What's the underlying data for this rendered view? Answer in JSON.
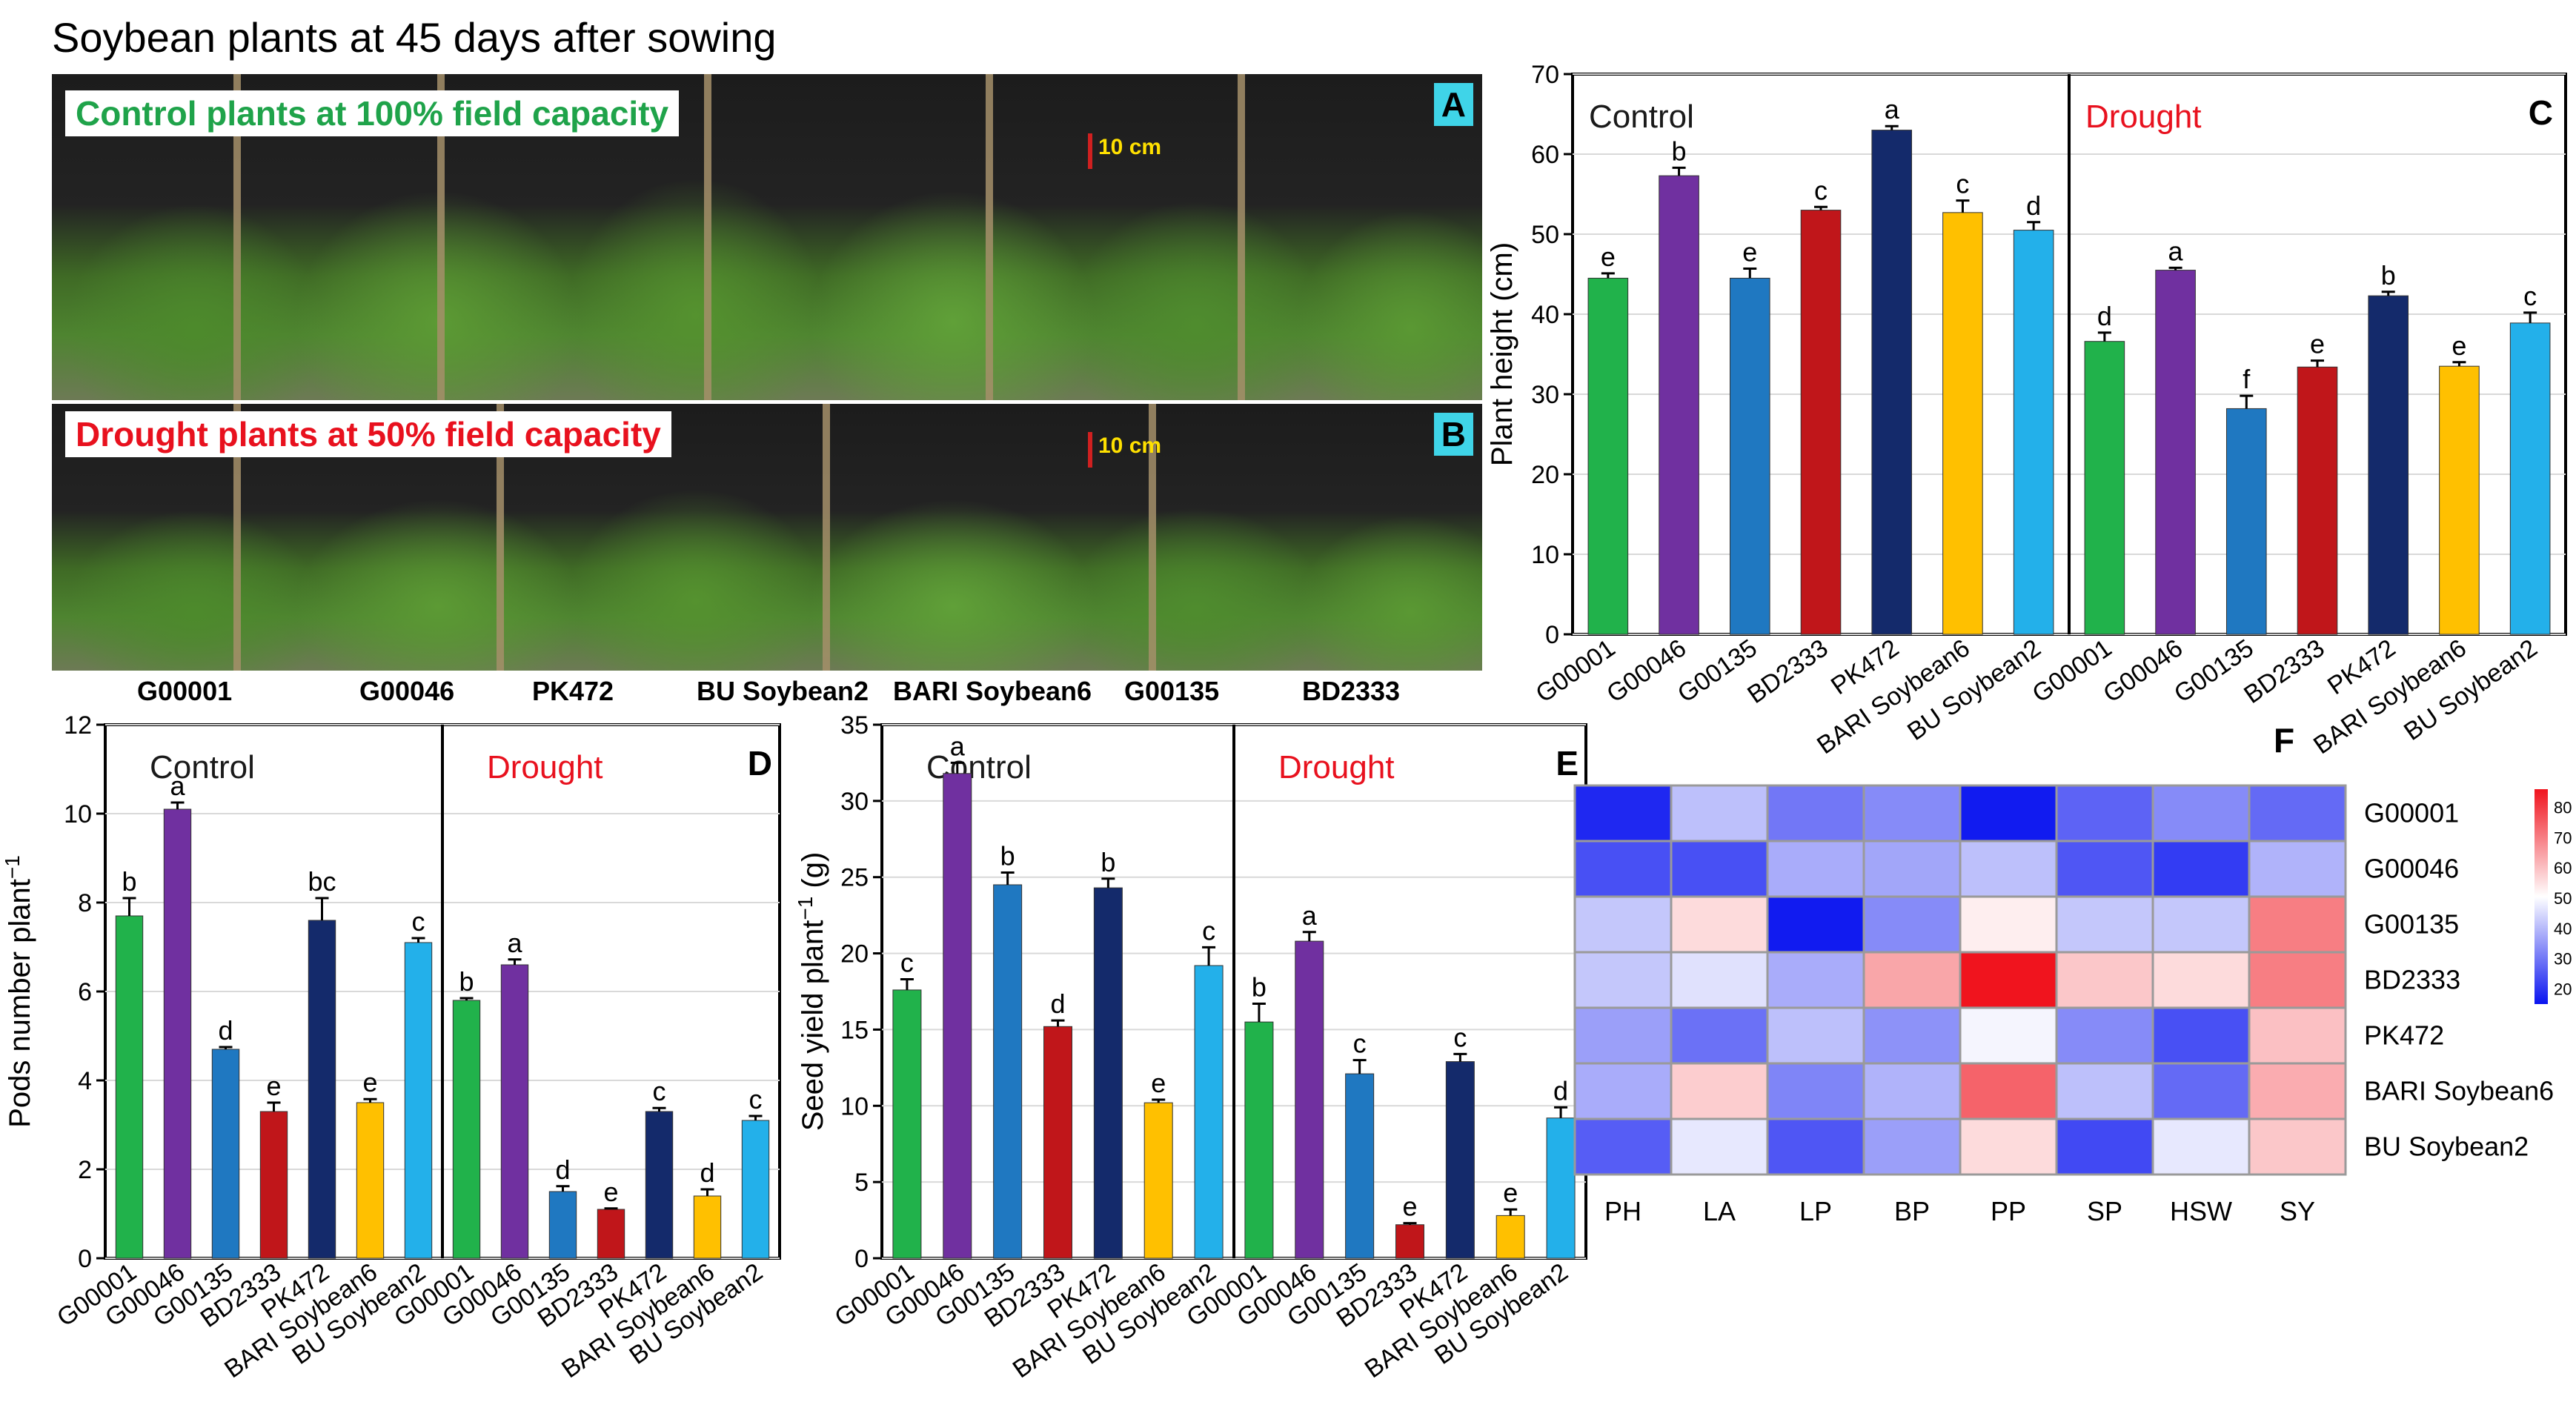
{
  "title": "Soybean plants at 45 days after sowing",
  "photo_a": {
    "label": "Control plants at 100% field capacity",
    "tag": "A",
    "scale": "10 cm"
  },
  "photo_b": {
    "label": "Drought plants at 50% field capacity",
    "tag": "B",
    "scale": "10 cm"
  },
  "photo_cultivars": [
    "G00001",
    "G00046",
    "PK472",
    "BU Soybean2",
    "BARI Soybean6",
    "G00135",
    "BD2333"
  ],
  "colors": {
    "control_text": "#1a1a1a",
    "drought_text": "#e8111e",
    "label_green": "#1fa34a",
    "label_red": "#e8111e"
  },
  "chart_data": [
    {
      "type": "bar",
      "panel": "C",
      "ylabel": "Plant height (cm)",
      "ylim": [
        0,
        70
      ],
      "yticks": [
        0,
        10,
        20,
        30,
        40,
        50,
        60,
        70
      ],
      "groups": [
        "Control",
        "Drought"
      ],
      "categories": [
        "G00001",
        "G00046",
        "G00135",
        "BD2333",
        "PK472",
        "BARI Soybean6",
        "BU Soybean2"
      ],
      "colors": [
        "#21b24b",
        "#7030a0",
        "#1f78c1",
        "#c0161a",
        "#142a6b",
        "#ffc000",
        "#23b0ea"
      ],
      "series": [
        {
          "name": "Control",
          "values": [
            44.5,
            57.3,
            44.5,
            53.0,
            63.0,
            52.7,
            50.5
          ],
          "errors": [
            0.6,
            1.0,
            1.2,
            0.4,
            0.5,
            1.5,
            1.0
          ],
          "letters": [
            "e",
            "b",
            "e",
            "c",
            "a",
            "c",
            "d"
          ]
        },
        {
          "name": "Drought",
          "values": [
            36.6,
            45.5,
            28.2,
            33.4,
            42.3,
            33.5,
            38.9
          ],
          "errors": [
            1.1,
            0.3,
            1.6,
            0.8,
            0.5,
            0.5,
            1.3
          ],
          "letters": [
            "d",
            "a",
            "f",
            "e",
            "b",
            "e",
            "c"
          ]
        }
      ]
    },
    {
      "type": "bar",
      "panel": "D",
      "ylabel": "Pods number plant",
      "ylabel_sup": "−1",
      "ylim": [
        0,
        12
      ],
      "yticks": [
        0,
        2,
        4,
        6,
        8,
        10,
        12
      ],
      "groups": [
        "Control",
        "Drought"
      ],
      "categories": [
        "G00001",
        "G00046",
        "G00135",
        "BD2333",
        "PK472",
        "BARI Soybean6",
        "BU Soybean2"
      ],
      "colors": [
        "#21b24b",
        "#7030a0",
        "#1f78c1",
        "#c0161a",
        "#142a6b",
        "#ffc000",
        "#23b0ea"
      ],
      "series": [
        {
          "name": "Control",
          "values": [
            7.7,
            10.1,
            4.7,
            3.3,
            7.6,
            3.5,
            7.1
          ],
          "errors": [
            0.4,
            0.15,
            0.05,
            0.2,
            0.5,
            0.08,
            0.1
          ],
          "letters": [
            "b",
            "a",
            "d",
            "e",
            "bc",
            "e",
            "c"
          ]
        },
        {
          "name": "Drought",
          "values": [
            5.8,
            6.6,
            1.5,
            1.1,
            3.3,
            1.4,
            3.1
          ],
          "errors": [
            0.05,
            0.12,
            0.12,
            0.02,
            0.08,
            0.15,
            0.1
          ],
          "letters": [
            "b",
            "a",
            "d",
            "e",
            "c",
            "d",
            "c"
          ]
        }
      ]
    },
    {
      "type": "bar",
      "panel": "E",
      "ylabel": "Seed yield plant",
      "ylabel_sup": "−1",
      "ylabel_suffix": " (g)",
      "ylim": [
        0,
        35
      ],
      "yticks": [
        0,
        5,
        10,
        15,
        20,
        25,
        30,
        35
      ],
      "groups": [
        "Control",
        "Drought"
      ],
      "categories": [
        "G00001",
        "G00046",
        "G00135",
        "BD2333",
        "PK472",
        "BARI Soybean6",
        "BU Soybean2"
      ],
      "colors": [
        "#21b24b",
        "#7030a0",
        "#1f78c1",
        "#c0161a",
        "#142a6b",
        "#ffc000",
        "#23b0ea"
      ],
      "series": [
        {
          "name": "Control",
          "values": [
            17.6,
            31.8,
            24.5,
            15.2,
            24.3,
            10.2,
            19.2
          ],
          "errors": [
            0.7,
            0.7,
            0.8,
            0.4,
            0.6,
            0.2,
            1.2
          ],
          "letters": [
            "c",
            "a",
            "b",
            "d",
            "b",
            "e",
            "c"
          ]
        },
        {
          "name": "Drought",
          "values": [
            15.5,
            20.8,
            12.1,
            2.2,
            12.9,
            2.8,
            9.2
          ],
          "errors": [
            1.2,
            0.6,
            0.9,
            0.1,
            0.5,
            0.4,
            0.7
          ],
          "letters": [
            "b",
            "a",
            "c",
            "e",
            "c",
            "e",
            "d"
          ]
        }
      ]
    },
    {
      "type": "heatmap",
      "panel": "F",
      "rows": [
        "G00001",
        "G00046",
        "G00135",
        "BD2333",
        "PK472",
        "BARI Soybean6",
        "BU Soybean2"
      ],
      "columns": [
        "PH",
        "LA",
        "LP",
        "BP",
        "PP",
        "SP",
        "HSW",
        "SY"
      ],
      "values": [
        [
          18,
          41,
          30,
          33,
          16,
          27,
          33,
          28
        ],
        [
          24,
          24,
          38,
          37,
          41,
          25,
          21,
          39
        ],
        [
          42,
          56,
          16,
          33,
          53,
          42,
          42,
          70
        ],
        [
          42,
          46,
          38,
          64,
          86,
          59,
          56,
          70
        ],
        [
          36,
          29,
          41,
          34,
          49,
          33,
          24,
          60
        ],
        [
          38,
          58,
          32,
          39,
          74,
          41,
          28,
          63
        ],
        [
          26,
          47,
          25,
          36,
          56,
          23,
          47,
          59
        ]
      ],
      "colorbar": {
        "min": 15,
        "max": 86,
        "ticks": [
          20,
          30,
          40,
          50,
          60,
          70,
          80
        ],
        "low": "#0a14f0",
        "mid": "#ffffff",
        "high": "#f0141e"
      }
    }
  ]
}
